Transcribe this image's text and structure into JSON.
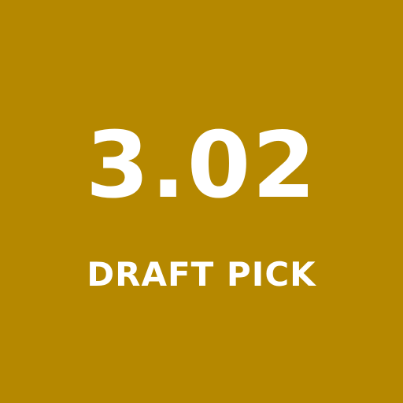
{
  "tile": {
    "number": "3.02",
    "label": "DRAFT PICK"
  },
  "colors": {
    "background": "#b58800",
    "text": "#ffffff"
  }
}
